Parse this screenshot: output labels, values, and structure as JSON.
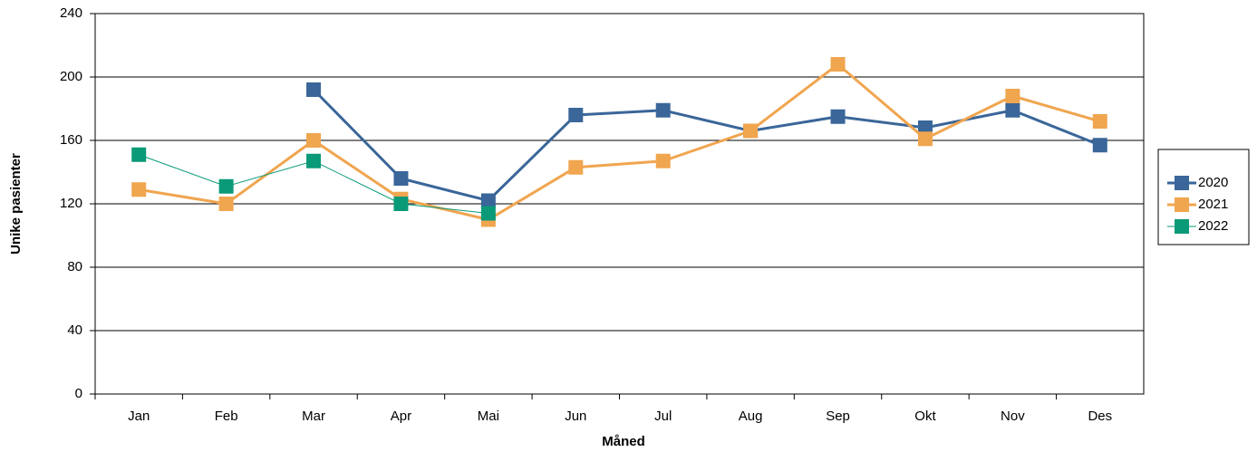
{
  "chart_data": {
    "type": "line",
    "xlabel": "Måned",
    "ylabel": "Unike pasienter",
    "categories": [
      "Jan",
      "Feb",
      "Mar",
      "Apr",
      "Mai",
      "Jun",
      "Jul",
      "Aug",
      "Sep",
      "Okt",
      "Nov",
      "Des"
    ],
    "series": [
      {
        "name": "2020",
        "color": "#3a6699",
        "line_width": 3,
        "values": [
          null,
          null,
          192,
          136,
          122,
          176,
          179,
          166,
          175,
          168,
          179,
          157
        ]
      },
      {
        "name": "2021",
        "color": "#f0a54f",
        "line_width": 3,
        "values": [
          129,
          120,
          160,
          123,
          110,
          143,
          147,
          166,
          208,
          161,
          188,
          172
        ]
      },
      {
        "name": "2022",
        "color": "#0a9a78",
        "line_width": 1,
        "values": [
          151,
          131,
          147,
          120,
          114,
          null,
          null,
          null,
          null,
          null,
          null,
          null
        ]
      }
    ],
    "ylim": [
      0,
      240
    ],
    "yticks": [
      0,
      40,
      80,
      120,
      160,
      200,
      240
    ],
    "grid": true,
    "legend": "right"
  }
}
